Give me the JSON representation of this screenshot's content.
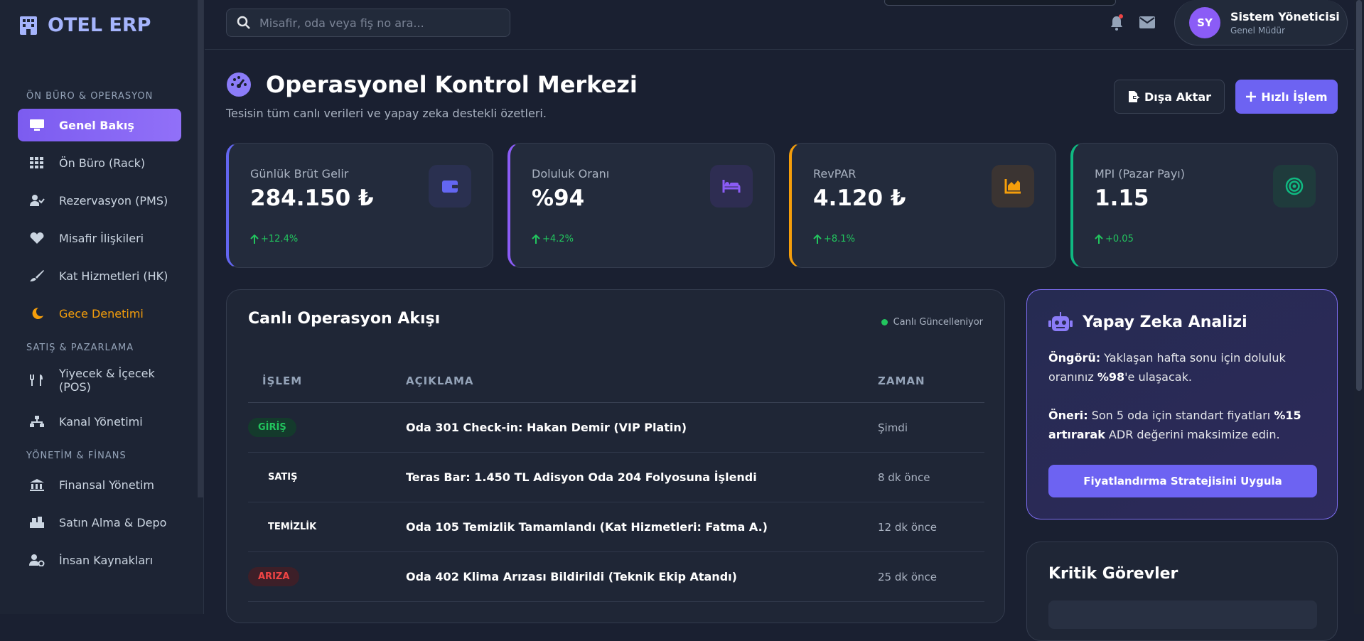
{
  "sidebar": {
    "logo": "OTEL ERP",
    "active": 0,
    "sections": [
      {
        "title": "ÖN BÜRO & OPERASYON",
        "items": [
          "Genel Bakış",
          "Ön Büro (Rack)",
          "Rezervasyon (PMS)",
          "Misafir İlişkileri",
          "Kat Hizmetleri (HK)",
          "Gece Denetimi"
        ]
      },
      {
        "title": "SATIŞ & PAZARLAMA",
        "items": [
          "Yiyecek & İçecek (POS)",
          "Kanal Yönetimi"
        ]
      },
      {
        "title": "YÖNETİM & FİNANS",
        "items": [
          "Finansal Yönetim",
          "Satın Alma & Depo",
          "İnsan Kaynakları"
        ]
      }
    ]
  },
  "topbar": {
    "search_placeholder": "Misafir, oda veya fiş no ara...",
    "user": {
      "initials": "SY",
      "name": "Sistem Yöneticisi",
      "role": "Genel Müdür"
    }
  },
  "header": {
    "title": "Operasyonel Kontrol Merkezi",
    "subtitle": "Tesisin tüm canlı verileri ve yapay zeka destekli özetleri.",
    "export_button": "Dışa Aktar",
    "quick_button": "Hızlı İşlem"
  },
  "kpis": [
    {
      "label": "Günlük Brüt Gelir",
      "value": "284.150 ₺",
      "change": "+12.4%",
      "color": "#6366f1"
    },
    {
      "label": "Doluluk Oranı",
      "value": "%94",
      "change": "+4.2%",
      "color": "#8b5cf6"
    },
    {
      "label": "RevPAR",
      "value": "4.120 ₺",
      "change": "+8.1%",
      "color": "#f59e0b"
    },
    {
      "label": "MPI (Pazar Payı)",
      "value": "1.15",
      "change": "+0.05",
      "color": "#10b981"
    }
  ],
  "feed": {
    "title": "Canlı Operasyon Akışı",
    "status": "Canlı Güncelleniyor",
    "columns": [
      "İŞLEM",
      "AÇIKLAMA",
      "ZAMAN"
    ],
    "rows": [
      {
        "type": "GİRİŞ",
        "tone": "green",
        "description": "Oda 301 Check-in: Hakan Demir (VIP Platin)",
        "time": "Şimdi"
      },
      {
        "type": "SATIŞ",
        "tone": "plain",
        "description": "Teras Bar: 1.450 TL Adisyon Oda 204 Folyosuna İşlendi",
        "time": "8 dk önce"
      },
      {
        "type": "TEMİZLİK",
        "tone": "plain",
        "description": "Oda 105 Temizlik Tamamlandı (Kat Hizmetleri: Fatma A.)",
        "time": "12 dk önce"
      },
      {
        "type": "ARIZA",
        "tone": "red",
        "description": "Oda 402 Klima Arızası Bildirildi (Teknik Ekip Atandı)",
        "time": "25 dk önce"
      }
    ]
  },
  "ai": {
    "title": "Yapay Zeka Analizi",
    "paragraphs": [
      [
        {
          "text": "Öngörü:",
          "bold": true
        },
        {
          "text": " Yaklaşan hafta sonu için doluluk oranınız ",
          "bold": false
        },
        {
          "text": "%98",
          "bold": true
        },
        {
          "text": "'e ulaşacak.",
          "bold": false
        }
      ],
      [
        {
          "text": "Öneri:",
          "bold": true
        },
        {
          "text": " Son 5 oda için standart fiyatları ",
          "bold": false
        },
        {
          "text": "%15 artırarak",
          "bold": true
        },
        {
          "text": " ADR değerini maksimize edin.",
          "bold": false
        }
      ]
    ],
    "button": "Fiyatlandırma Stratejisini Uygula"
  },
  "tasks": {
    "title": "Kritik Görevler"
  }
}
